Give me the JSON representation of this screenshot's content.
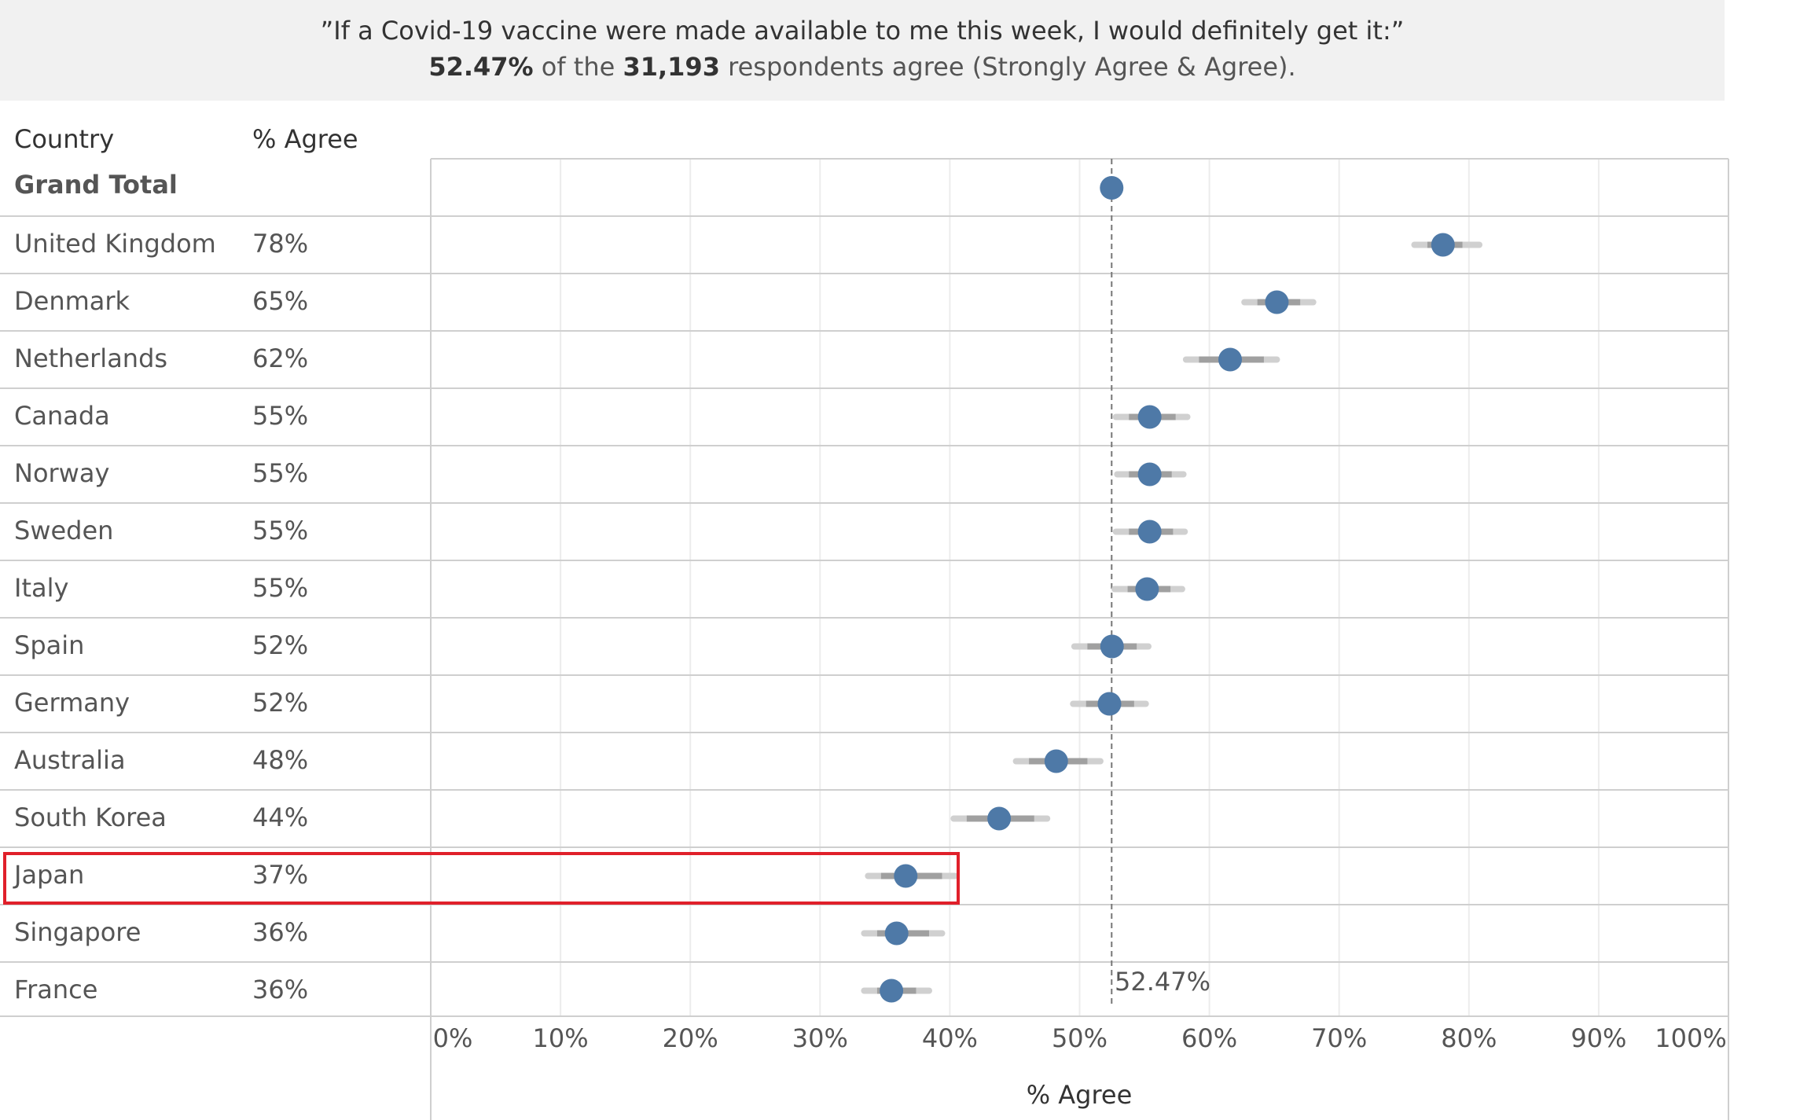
{
  "header": {
    "line1": "”If a Covid-19 vaccine were made available to me this week, I would definitely get it:”",
    "pct": "52.47%",
    "of_the": " of the ",
    "respondents": "31,193",
    "rest": " respondents agree (Strongly Agree & Agree)."
  },
  "table": {
    "col_country": "Country",
    "col_agree": "% Agree",
    "grand_total_label": "Grand Total"
  },
  "reference_line": {
    "value": 52.47,
    "label": "52.47%"
  },
  "highlight": {
    "country": "Japan",
    "color": "#e0202a"
  },
  "colors": {
    "dot": "#4e79a7",
    "ci_outer": "#d0d0d0",
    "ci_inner": "#a0a0a0",
    "ref_line": "#777777"
  },
  "chart_data": {
    "type": "scatter",
    "xlabel": "% Agree",
    "xlim": [
      0,
      100
    ],
    "xticks": [
      "0%",
      "10%",
      "20%",
      "30%",
      "40%",
      "50%",
      "60%",
      "70%",
      "80%",
      "90%",
      "100%"
    ],
    "grand_total": 52.47,
    "rows": [
      {
        "country": "United Kingdom",
        "label": "78%",
        "value": 78.0,
        "ci_outer": [
          75.8,
          80.8
        ],
        "ci_inner": [
          76.8,
          79.5
        ]
      },
      {
        "country": "Denmark",
        "label": "65%",
        "value": 65.2,
        "ci_outer": [
          62.7,
          68.0
        ],
        "ci_inner": [
          63.7,
          67.0
        ]
      },
      {
        "country": "Netherlands",
        "label": "62%",
        "value": 61.6,
        "ci_outer": [
          58.2,
          65.2
        ],
        "ci_inner": [
          59.2,
          64.2
        ]
      },
      {
        "country": "Canada",
        "label": "55%",
        "value": 55.4,
        "ci_outer": [
          52.8,
          58.3
        ],
        "ci_inner": [
          53.8,
          57.4
        ]
      },
      {
        "country": "Norway",
        "label": "55%",
        "value": 55.4,
        "ci_outer": [
          52.9,
          58.0
        ],
        "ci_inner": [
          53.8,
          57.1
        ]
      },
      {
        "country": "Sweden",
        "label": "55%",
        "value": 55.4,
        "ci_outer": [
          52.8,
          58.1
        ],
        "ci_inner": [
          53.8,
          57.2
        ]
      },
      {
        "country": "Italy",
        "label": "55%",
        "value": 55.2,
        "ci_outer": [
          52.7,
          57.9
        ],
        "ci_inner": [
          53.7,
          57.0
        ]
      },
      {
        "country": "Spain",
        "label": "52%",
        "value": 52.5,
        "ci_outer": [
          49.6,
          55.3
        ],
        "ci_inner": [
          50.6,
          54.4
        ]
      },
      {
        "country": "Germany",
        "label": "52%",
        "value": 52.3,
        "ci_outer": [
          49.5,
          55.1
        ],
        "ci_inner": [
          50.5,
          54.2
        ]
      },
      {
        "country": "Australia",
        "label": "48%",
        "value": 48.2,
        "ci_outer": [
          45.1,
          51.6
        ],
        "ci_inner": [
          46.1,
          50.6
        ]
      },
      {
        "country": "South Korea",
        "label": "44%",
        "value": 43.8,
        "ci_outer": [
          40.3,
          47.5
        ],
        "ci_inner": [
          41.3,
          46.5
        ]
      },
      {
        "country": "Japan",
        "label": "37%",
        "value": 36.6,
        "ci_outer": [
          33.7,
          40.4
        ],
        "ci_inner": [
          34.7,
          39.4
        ]
      },
      {
        "country": "Singapore",
        "label": "36%",
        "value": 35.9,
        "ci_outer": [
          33.4,
          39.4
        ],
        "ci_inner": [
          34.4,
          38.4
        ]
      },
      {
        "country": "France",
        "label": "36%",
        "value": 35.5,
        "ci_outer": [
          33.4,
          38.4
        ],
        "ci_inner": [
          34.4,
          37.4
        ]
      }
    ]
  }
}
